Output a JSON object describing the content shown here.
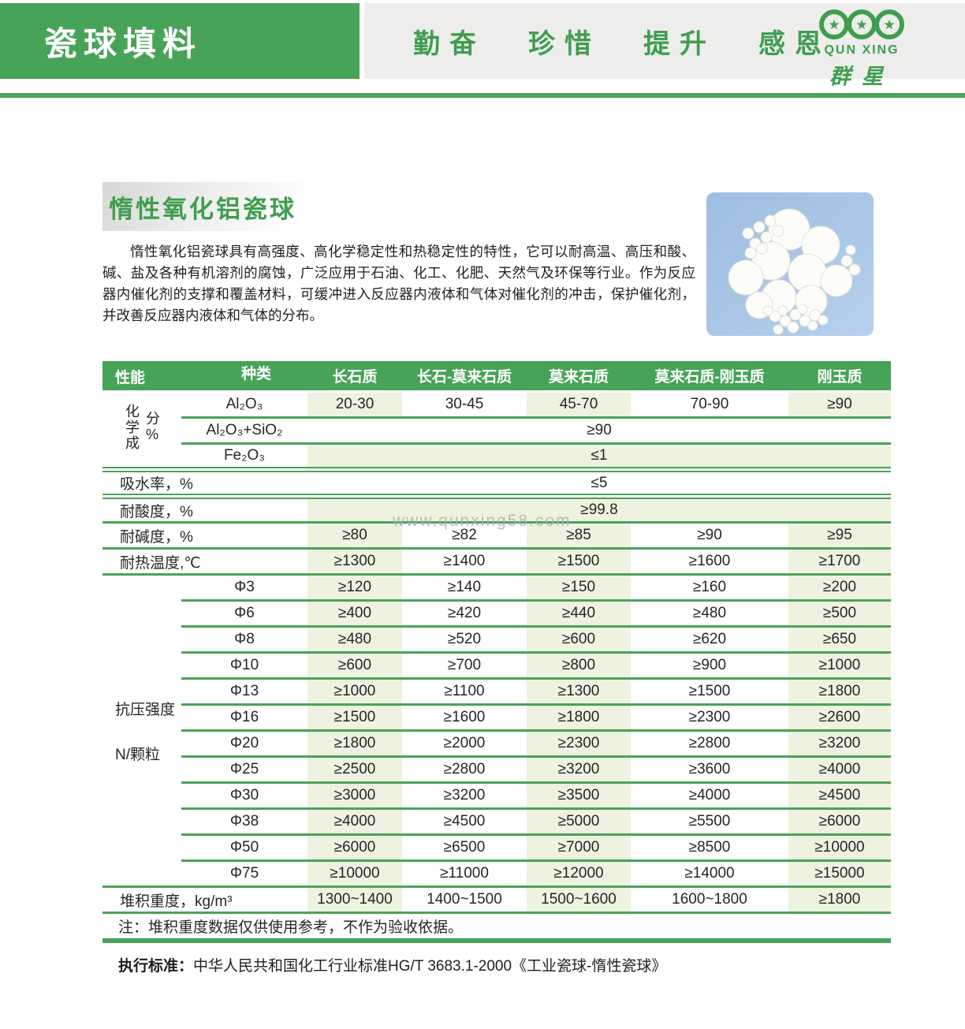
{
  "colors": {
    "green": "#47a357",
    "light_green_cell": "#edf3e0",
    "row_line": "#4aa35a",
    "slogan_green": "#3f9d4f",
    "photo_blue": "#a9c5e7"
  },
  "header": {
    "title": "瓷球填料",
    "slogans": [
      "勤奋",
      "珍惜",
      "提升",
      "感恩"
    ],
    "logo": {
      "latin": "QUN XING",
      "chinese": "群星"
    }
  },
  "section": {
    "title": "惰性氧化铝瓷球",
    "description": "惰性氧化铝瓷球具有高强度、高化学稳定性和热稳定性的特性，它可以耐高温、高压和酸、碱、盐及各种有机溶剂的腐蚀，广泛应用于石油、化工、化肥、天然气及环保等行业。作为反应器内催化剂的支撑和覆盖材料，可缓冲进入反应器内液体和气体对催化剂的冲击，保护催化剂，并改善反应器内液体和气体的分布。"
  },
  "watermark": "www.qunxing58.com",
  "table": {
    "corner": {
      "top": "种类",
      "bottom": "性能"
    },
    "columns": [
      "长石质",
      "长石-莫来石质",
      "莫来石质",
      "莫来石质-刚玉质",
      "刚玉质"
    ],
    "chemistry": {
      "group_label": "化学成分%",
      "rows": [
        {
          "label": "Al₂O₃",
          "values": [
            "20-30",
            "30-45",
            "45-70",
            "70-90",
            "≥90"
          ]
        },
        {
          "label": "Al₂O₃+SiO₂",
          "merged": "≥90",
          "shade": "white"
        },
        {
          "label": "Fe₂O₃",
          "merged": "≤1",
          "shade": "green"
        }
      ]
    },
    "properties": [
      {
        "label": "吸水率，%",
        "merged": "≤5",
        "shade": "white",
        "divider": "double"
      },
      {
        "label": "耐酸度，%",
        "merged": "≥99.8",
        "shade": "green",
        "divider": "double"
      },
      {
        "label": "耐碱度，%",
        "values": [
          "≥80",
          "≥82",
          "≥85",
          "≥90",
          "≥95"
        ]
      },
      {
        "label": "耐热温度,℃",
        "values": [
          "≥1300",
          "≥1400",
          "≥1500",
          "≥1600",
          "≥1700"
        ]
      }
    ],
    "strength": {
      "group_labels": [
        "抗压强度",
        "N/颗粒"
      ],
      "rows": [
        {
          "size": "Φ3",
          "values": [
            "≥120",
            "≥140",
            "≥150",
            "≥160",
            "≥200"
          ]
        },
        {
          "size": "Φ6",
          "values": [
            "≥400",
            "≥420",
            "≥440",
            "≥480",
            "≥500"
          ]
        },
        {
          "size": "Φ8",
          "values": [
            "≥480",
            "≥520",
            "≥600",
            "≥620",
            "≥650"
          ]
        },
        {
          "size": "Φ10",
          "values": [
            "≥600",
            "≥700",
            "≥800",
            "≥900",
            "≥1000"
          ]
        },
        {
          "size": "Φ13",
          "values": [
            "≥1000",
            "≥1100",
            "≥1300",
            "≥1500",
            "≥1800"
          ]
        },
        {
          "size": "Φ16",
          "values": [
            "≥1500",
            "≥1600",
            "≥1800",
            "≥2300",
            "≥2600"
          ]
        },
        {
          "size": "Φ20",
          "values": [
            "≥1800",
            "≥2000",
            "≥2300",
            "≥2800",
            "≥3200"
          ]
        },
        {
          "size": "Φ25",
          "values": [
            "≥2500",
            "≥2800",
            "≥3200",
            "≥3600",
            "≥4000"
          ]
        },
        {
          "size": "Φ30",
          "values": [
            "≥3000",
            "≥3200",
            "≥3500",
            "≥4000",
            "≥4500"
          ]
        },
        {
          "size": "Φ38",
          "values": [
            "≥4000",
            "≥4500",
            "≥5000",
            "≥5500",
            "≥6000"
          ]
        },
        {
          "size": "Φ50",
          "values": [
            "≥6000",
            "≥6500",
            "≥7000",
            "≥8500",
            "≥10000"
          ]
        },
        {
          "size": "Φ75",
          "values": [
            "≥10000",
            "≥11000",
            "≥12000",
            "≥14000",
            "≥15000"
          ]
        }
      ]
    },
    "bulk_density": {
      "label": "堆积重度，kg/m³",
      "values": [
        "1300~1400",
        "1400~1500",
        "1500~1600",
        "1600~1800",
        "≥1800"
      ]
    },
    "note": "注：堆积重度数据仅供使用参考，不作为验收依据。"
  },
  "footer": {
    "standard_label": "执行标准：",
    "standard_text": "中华人民共和国化工行业标准HG/T 3683.1-2000《工业瓷球-惰性瓷球》"
  }
}
